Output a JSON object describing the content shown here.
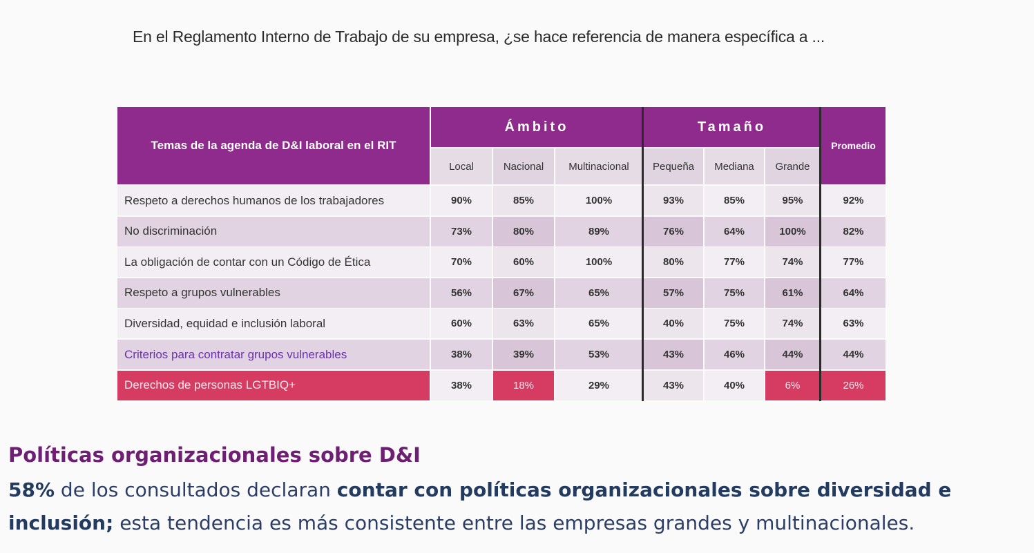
{
  "question": "En el Reglamento Interno de Trabajo de su empresa, ¿se hace referencia de manera específica a ...",
  "table": {
    "topic_header": "Temas de la agenda de D&I laboral en el RIT",
    "group_ambito": "Ámbito",
    "group_tamano": "Tamaño",
    "promedio_header": "Promedio",
    "subheaders": [
      "Local",
      "Nacional",
      "Multinacional",
      "Pequeña",
      "Mediana",
      "Grande"
    ],
    "rows": [
      {
        "label": "Respeto a derechos humanos de los trabajadores",
        "values": [
          "90%",
          "85%",
          "100%",
          "93%",
          "85%",
          "95%",
          "92%"
        ]
      },
      {
        "label": "No discriminación",
        "values": [
          "73%",
          "80%",
          "89%",
          "76%",
          "64%",
          "100%",
          "82%"
        ]
      },
      {
        "label": "La obligación de contar con un Código de Ética",
        "values": [
          "70%",
          "60%",
          "100%",
          "80%",
          "77%",
          "74%",
          "77%"
        ]
      },
      {
        "label": "Respeto a grupos vulnerables",
        "values": [
          "56%",
          "67%",
          "65%",
          "57%",
          "75%",
          "61%",
          "64%"
        ]
      },
      {
        "label": "Diversidad, equidad e inclusión laboral",
        "values": [
          "60%",
          "63%",
          "65%",
          "40%",
          "75%",
          "74%",
          "63%"
        ]
      },
      {
        "label": "Criterios para contratar grupos vulnerables",
        "values": [
          "38%",
          "39%",
          "53%",
          "43%",
          "46%",
          "44%",
          "44%"
        ]
      },
      {
        "label": "Derechos de  personas LGTBIQ+",
        "values": [
          "38%",
          "18%",
          "29%",
          "43%",
          "40%",
          "6%",
          "26%"
        ]
      }
    ],
    "colors": {
      "header": "#8e2b8c",
      "highlight": "#d63c62",
      "row_light": "#f3eef3",
      "row_dark": "#e2d3e2",
      "criterios_text": "#6a32a8"
    }
  },
  "footer": {
    "title": "Políticas organizacionales sobre D&I",
    "pct": "58%",
    "text1": " de los consultados declaran ",
    "bold1": "contar con políticas organizacionales sobre diversidad e inclusión;",
    "text2": " esta tendencia es más consistente entre las empresas grandes y multinacionales."
  }
}
